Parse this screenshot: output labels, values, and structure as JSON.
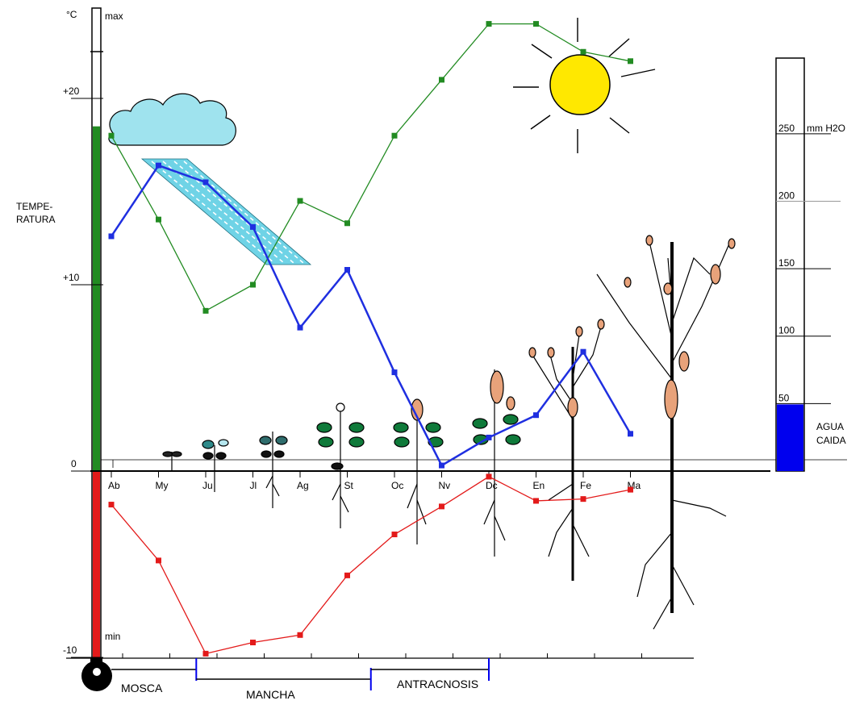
{
  "chart_data": {
    "type": "line",
    "categories": [
      "Ab",
      "My",
      "Ju",
      "Jl",
      "Ag",
      "St",
      "Oc",
      "Nv",
      "Dc",
      "En",
      "Fe",
      "Ma"
    ],
    "ylabel": "TEMPE-\nRATURA",
    "y_unit": "°C",
    "y_ticks": [
      "+20",
      "+10",
      "0",
      "-10"
    ],
    "y_marks": {
      "max": "max",
      "min": "min"
    },
    "ylim": [
      -10,
      25
    ],
    "grid": false,
    "series": [
      {
        "color": "#228b22",
        "values": [
          18.0,
          13.5,
          8.6,
          10.0,
          14.5,
          13.3,
          18.0,
          21.0,
          24.0,
          24.0,
          22.5,
          22.0
        ]
      },
      {
        "color": "#1f2fe0",
        "values": [
          12.6,
          16.4,
          15.5,
          13.1,
          7.7,
          10.8,
          5.3,
          0.3,
          1.8,
          3.0,
          6.4,
          2.0
        ]
      },
      {
        "color": "#e31a1a",
        "values": [
          -1.8,
          -4.8,
          -9.8,
          -9.2,
          -8.8,
          -5.6,
          -3.4,
          -1.9,
          -0.3,
          -1.6,
          -1.5,
          -1.0
        ]
      }
    ],
    "rain_scale": {
      "label": "mm H2O",
      "ticks": [
        "250",
        "200",
        "150",
        "100",
        "50"
      ],
      "max": 300,
      "value": 22,
      "caption": "AGUA\nCAIDA",
      "color": "#0000ee"
    },
    "phases": [
      {
        "label": "MOSCA",
        "from": 0,
        "to": 1.8
      },
      {
        "label": "MANCHA",
        "from": 1.8,
        "to": 5.5
      },
      {
        "label": "ANTRACNOSIS",
        "from": 5.5,
        "to": 8.0
      }
    ],
    "thermometer_fill": {
      "value": 18.5,
      "color": "#228b22"
    },
    "thermometer_below": {
      "value": -10,
      "color": "#e31a1a"
    }
  }
}
